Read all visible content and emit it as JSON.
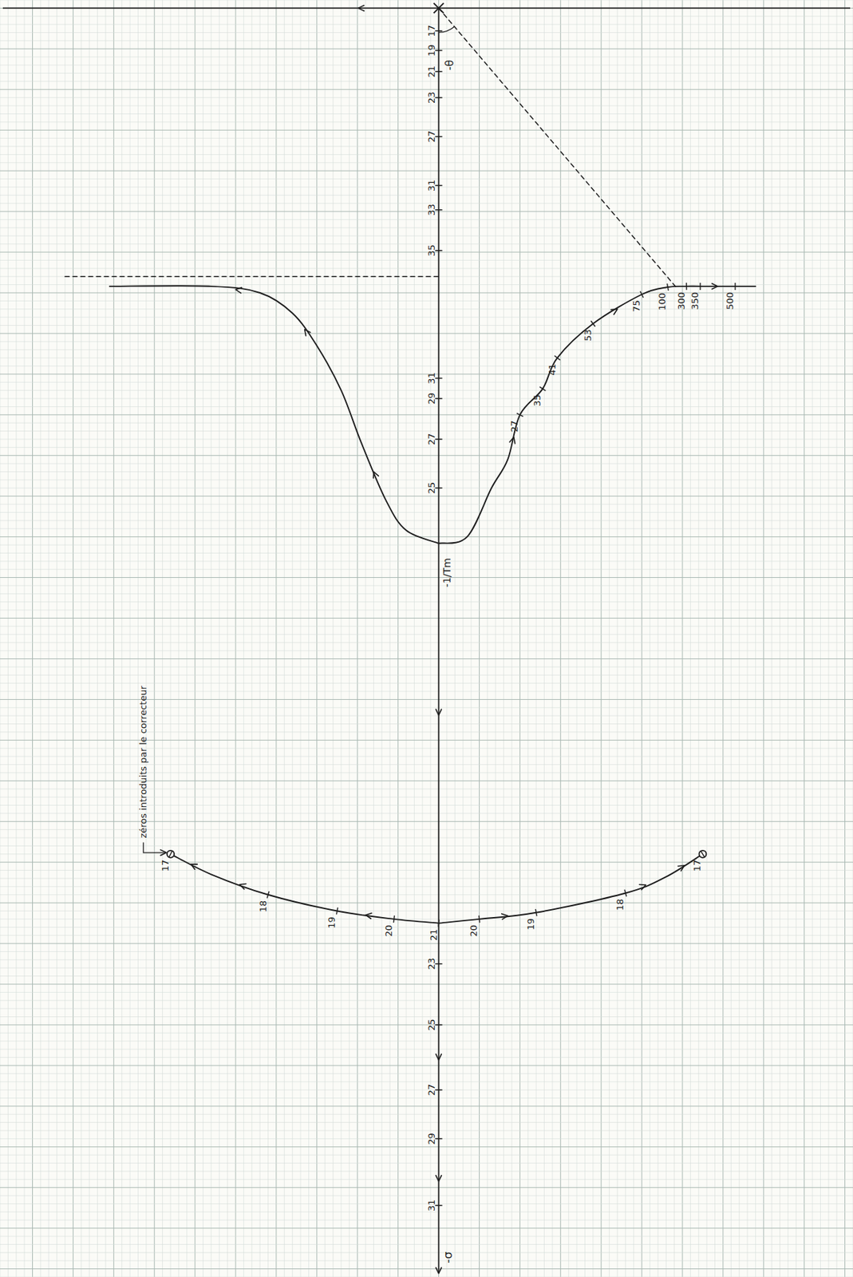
{
  "chart_data": {
    "type": "root_locus",
    "xlim": [
      -54,
      51
    ],
    "ylim": [
      -1,
      156
    ],
    "grid": true,
    "tick_labels": false,
    "color": "#1e1e1e",
    "annotations": {
      "real_axis": "-σ",
      "angle": "-θ",
      "pole": "-1/Tm",
      "zeros": "zéros introduits par le correcteur"
    },
    "axis_gains": {
      "values": [
        2.8,
        5.2,
        7.8,
        11,
        15.8,
        21.8,
        24.8,
        29.8,
        45.5,
        48,
        53,
        59,
        117.5,
        125,
        133,
        139,
        147.2
      ],
      "gains": [
        17,
        19,
        21,
        23,
        27,
        31,
        33,
        35,
        31,
        29,
        27,
        25,
        23,
        25,
        27,
        29,
        31
      ]
    },
    "series": [
      {
        "line_style": "solid",
        "marker": "none",
        "x": [
          0,
          -4,
          -6.5,
          -9.5,
          -12,
          -15,
          -18,
          -22,
          -28,
          -40.5
        ],
        "values": [
          65.8,
          64.2,
          60.5,
          53.5,
          47,
          41.5,
          37.5,
          35,
          34.2,
          34.2
        ],
        "gains": [
          null,
          null,
          null,
          null,
          null,
          null,
          null,
          null,
          null,
          null
        ]
      },
      {
        "line_style": "solid",
        "marker": "none",
        "x": [
          0,
          3.5,
          6.5,
          8.5,
          10,
          12.8,
          14.6,
          19,
          25,
          28.2,
          30.5,
          32.2,
          36.5,
          39
        ],
        "values": [
          65.8,
          65,
          59,
          55.5,
          50,
          46.8,
          43,
          38.8,
          35.2,
          34.3,
          34.2,
          34.2,
          34.2,
          34.2
        ],
        "gains": [
          null,
          null,
          null,
          null,
          27,
          35,
          41,
          53,
          75,
          100,
          300,
          350,
          500,
          null
        ]
      },
      {
        "line_style": "solid",
        "marker": "circle",
        "x": [
          0,
          -5.5,
          -12.5,
          -21,
          -28,
          -33
        ],
        "values": [
          112.5,
          112,
          111,
          109,
          106.5,
          104
        ],
        "gains": [
          21,
          20,
          19,
          18,
          null,
          17
        ]
      },
      {
        "line_style": "solid",
        "marker": "circle",
        "x": [
          0,
          5,
          12,
          23,
          28,
          32.5
        ],
        "values": [
          112.5,
          112,
          111.2,
          108.8,
          106.8,
          104
        ],
        "gains": [
          null,
          20,
          19,
          18,
          null,
          17
        ]
      },
      {
        "line_style": "dashed",
        "marker": "none",
        "x": [
          -46,
          0
        ],
        "values": [
          33,
          33
        ],
        "gains": [
          null,
          null
        ]
      },
      {
        "line_style": "dashed",
        "marker": "none",
        "x": [
          0,
          29.3
        ],
        "values": [
          0,
          34.4
        ],
        "gains": [
          null,
          null
        ]
      }
    ]
  }
}
